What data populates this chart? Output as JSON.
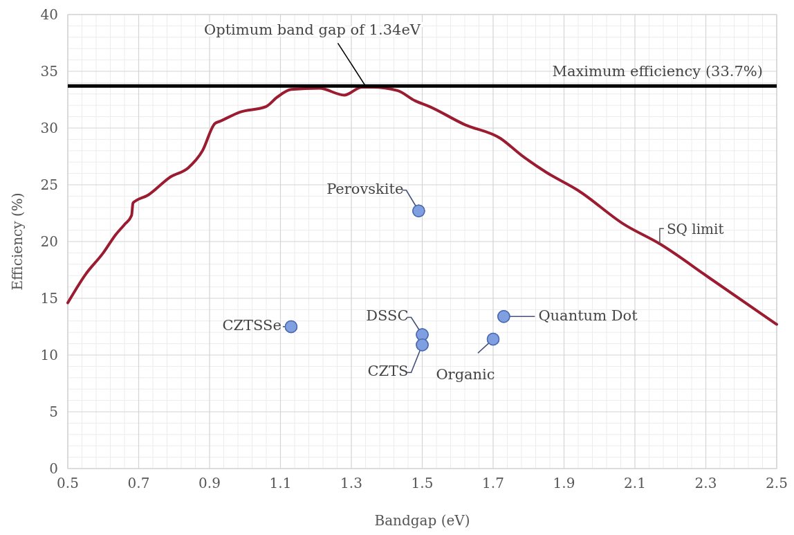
{
  "chart_data": {
    "type": "line",
    "xlabel": "Bandgap (eV)",
    "ylabel": "Efficiency (%)",
    "xlim": [
      0.5,
      2.5
    ],
    "ylim": [
      0,
      40
    ],
    "xticks": [
      0.5,
      0.7,
      0.9,
      1.1,
      1.3,
      1.5,
      1.7,
      1.9,
      2.1,
      2.3,
      2.5
    ],
    "yticks": [
      0,
      5,
      10,
      15,
      20,
      25,
      30,
      35,
      40
    ],
    "grid": true,
    "series": [
      {
        "name": "SQ limit",
        "color": "#9b1b30",
        "line_style": "solid",
        "x": [
          0.5,
          0.55,
          0.6,
          0.635,
          0.66,
          0.68,
          0.684,
          0.727,
          0.79,
          0.84,
          0.88,
          0.915,
          0.93,
          0.985,
          1.06,
          1.09,
          1.13,
          1.21,
          1.28,
          1.33,
          1.36,
          1.43,
          1.48,
          1.52,
          1.62,
          1.72,
          1.78,
          1.85,
          1.94,
          2.07,
          2.17,
          2.31,
          2.5
        ],
        "values": [
          14.6,
          17.1,
          19.0,
          20.6,
          21.5,
          22.3,
          23.4,
          24.1,
          25.7,
          26.5,
          28.0,
          30.4,
          30.6,
          31.4,
          31.9,
          32.7,
          33.4,
          33.5,
          32.9,
          33.6,
          33.6,
          33.3,
          32.4,
          31.9,
          30.3,
          29.1,
          27.6,
          26.1,
          24.5,
          21.5,
          19.8,
          16.8,
          12.7
        ]
      },
      {
        "type": "scatter",
        "color": "#7f9fe0",
        "marker": "circle",
        "x": [
          1.49,
          1.13,
          1.5,
          1.5,
          1.7,
          1.73
        ],
        "values": [
          22.7,
          12.5,
          11.8,
          10.9,
          11.4,
          13.4
        ]
      }
    ],
    "ref_lines": [
      {
        "axis": "y",
        "value": 33.7,
        "label": "Maximum efficiency (33.7%)",
        "color": "#000000",
        "line_style": "solid"
      }
    ],
    "annotations": [
      {
        "text": "Optimum band gap of 1.34eV",
        "x": 1.34,
        "y": 33.7
      },
      {
        "text": "Perovskite",
        "x": 1.49,
        "y": 22.7
      },
      {
        "text": "CZTSSe",
        "x": 1.13,
        "y": 12.5
      },
      {
        "text": "DSSC",
        "x": 1.5,
        "y": 11.8
      },
      {
        "text": "CZTS",
        "x": 1.5,
        "y": 10.9
      },
      {
        "text": "Organic",
        "x": 1.7,
        "y": 11.4
      },
      {
        "text": "Quantum Dot",
        "x": 1.73,
        "y": 13.4
      }
    ]
  }
}
